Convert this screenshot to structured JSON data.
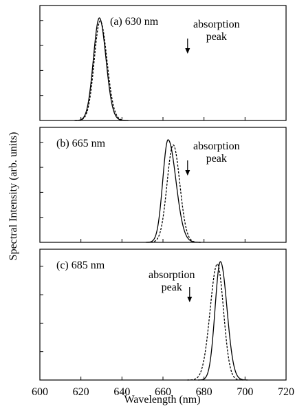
{
  "chart_data": {
    "type": "line",
    "ylabel": "Spectral Intensity (arb. units)",
    "xlabel": "Wavelength (nm)",
    "xlim": [
      600,
      720
    ],
    "x_ticks": [
      "600",
      "620",
      "640",
      "660",
      "680",
      "700",
      "720"
    ],
    "panels": [
      {
        "label": "(a) 630 nm",
        "annotation": {
          "text": [
            "absorption",
            "peak"
          ],
          "arrow_x": 672
        },
        "series": [
          {
            "style": "solid",
            "center": 629,
            "sigma_left": 2.9,
            "sigma_right": 3.2,
            "peak": 1.0
          },
          {
            "style": "dashed",
            "center": 629.4,
            "sigma_left": 2.9,
            "sigma_right": 3.3,
            "peak": 0.97
          }
        ]
      },
      {
        "label": "(b) 665 nm",
        "annotation": {
          "text": [
            "absorption",
            "peak"
          ],
          "arrow_x": 672
        },
        "series": [
          {
            "style": "solid",
            "center": 662.5,
            "sigma_left": 2.6,
            "sigma_right": 3.8,
            "peak": 1.0
          },
          {
            "style": "dashed",
            "center": 665,
            "sigma_left": 3.0,
            "sigma_right": 3.2,
            "peak": 0.95
          }
        ]
      },
      {
        "label": "(c) 685 nm",
        "annotation": {
          "text": [
            "absorption",
            "peak"
          ],
          "arrow_x": 673
        },
        "series": [
          {
            "style": "solid",
            "center": 688,
            "sigma_left": 2.6,
            "sigma_right": 3.2,
            "peak": 1.0
          },
          {
            "style": "dashed",
            "center": 686.5,
            "sigma_left": 3.5,
            "sigma_right": 3.0,
            "peak": 0.98
          }
        ]
      }
    ]
  }
}
